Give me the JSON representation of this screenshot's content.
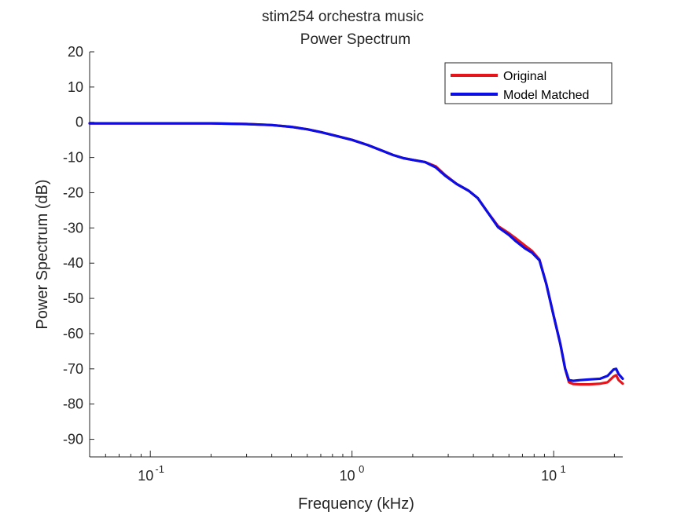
{
  "chart_data": {
    "type": "line",
    "title": "stim254 orchestra music",
    "subtitle": "Power Spectrum",
    "xlabel": "Frequency (kHz)",
    "ylabel": "Power Spectrum (dB)",
    "xscale": "log",
    "xlim": [
      0.05,
      22
    ],
    "ylim": [
      -95,
      20
    ],
    "y_ticks": [
      20,
      10,
      0,
      -10,
      -20,
      -30,
      -40,
      -50,
      -60,
      -70,
      -80,
      -90
    ],
    "x_ticks": [
      {
        "value": 0.1,
        "base": "10",
        "exp": "-1"
      },
      {
        "value": 1,
        "base": "10",
        "exp": "0"
      },
      {
        "value": 10,
        "base": "10",
        "exp": "1"
      }
    ],
    "grid": false,
    "legend_position": "top-right",
    "series": [
      {
        "name": "Original",
        "color": "#e8141b",
        "points": [
          [
            0.05,
            -0.3
          ],
          [
            0.1,
            -0.3
          ],
          [
            0.2,
            -0.3
          ],
          [
            0.3,
            -0.5
          ],
          [
            0.4,
            -0.8
          ],
          [
            0.5,
            -1.3
          ],
          [
            0.6,
            -2.0
          ],
          [
            0.7,
            -2.8
          ],
          [
            0.8,
            -3.6
          ],
          [
            1.0,
            -5.0
          ],
          [
            1.2,
            -6.5
          ],
          [
            1.4,
            -8.0
          ],
          [
            1.6,
            -9.3
          ],
          [
            1.8,
            -10.2
          ],
          [
            2.0,
            -10.7
          ],
          [
            2.3,
            -11.3
          ],
          [
            2.6,
            -12.5
          ],
          [
            2.9,
            -15.0
          ],
          [
            3.3,
            -17.5
          ],
          [
            3.8,
            -19.5
          ],
          [
            4.2,
            -21.5
          ],
          [
            4.7,
            -25.5
          ],
          [
            5.3,
            -29.5
          ],
          [
            6.0,
            -31.5
          ],
          [
            6.5,
            -33.0
          ],
          [
            7.2,
            -35.0
          ],
          [
            7.8,
            -36.5
          ],
          [
            8.5,
            -39.0
          ],
          [
            9.2,
            -46.0
          ],
          [
            10.0,
            -55.0
          ],
          [
            10.8,
            -63.0
          ],
          [
            11.4,
            -70.0
          ],
          [
            11.9,
            -73.8
          ],
          [
            12.5,
            -74.3
          ],
          [
            13.5,
            -74.4
          ],
          [
            15.0,
            -74.4
          ],
          [
            17.0,
            -74.2
          ],
          [
            18.5,
            -73.8
          ],
          [
            19.8,
            -72.2
          ],
          [
            20.4,
            -71.8
          ],
          [
            21.0,
            -73.2
          ],
          [
            22.0,
            -74.2
          ]
        ]
      },
      {
        "name": "Model Matched",
        "color": "#0b0ee6",
        "points": [
          [
            0.05,
            -0.3
          ],
          [
            0.1,
            -0.3
          ],
          [
            0.2,
            -0.3
          ],
          [
            0.3,
            -0.5
          ],
          [
            0.4,
            -0.8
          ],
          [
            0.5,
            -1.3
          ],
          [
            0.6,
            -2.0
          ],
          [
            0.7,
            -2.8
          ],
          [
            0.8,
            -3.6
          ],
          [
            1.0,
            -5.0
          ],
          [
            1.2,
            -6.5
          ],
          [
            1.4,
            -8.0
          ],
          [
            1.6,
            -9.3
          ],
          [
            1.8,
            -10.2
          ],
          [
            2.0,
            -10.7
          ],
          [
            2.3,
            -11.3
          ],
          [
            2.6,
            -12.8
          ],
          [
            2.9,
            -15.2
          ],
          [
            3.3,
            -17.5
          ],
          [
            3.8,
            -19.5
          ],
          [
            4.2,
            -21.5
          ],
          [
            4.7,
            -25.5
          ],
          [
            5.3,
            -29.8
          ],
          [
            6.0,
            -32.0
          ],
          [
            6.5,
            -33.8
          ],
          [
            7.2,
            -35.8
          ],
          [
            7.8,
            -37.0
          ],
          [
            8.5,
            -39.2
          ],
          [
            9.2,
            -46.0
          ],
          [
            10.0,
            -55.0
          ],
          [
            10.8,
            -63.0
          ],
          [
            11.4,
            -70.0
          ],
          [
            11.9,
            -73.2
          ],
          [
            12.5,
            -73.4
          ],
          [
            13.5,
            -73.2
          ],
          [
            15.0,
            -73.0
          ],
          [
            17.0,
            -72.8
          ],
          [
            18.5,
            -72.0
          ],
          [
            19.8,
            -70.2
          ],
          [
            20.4,
            -70.0
          ],
          [
            21.0,
            -71.5
          ],
          [
            22.0,
            -72.8
          ]
        ]
      }
    ]
  }
}
